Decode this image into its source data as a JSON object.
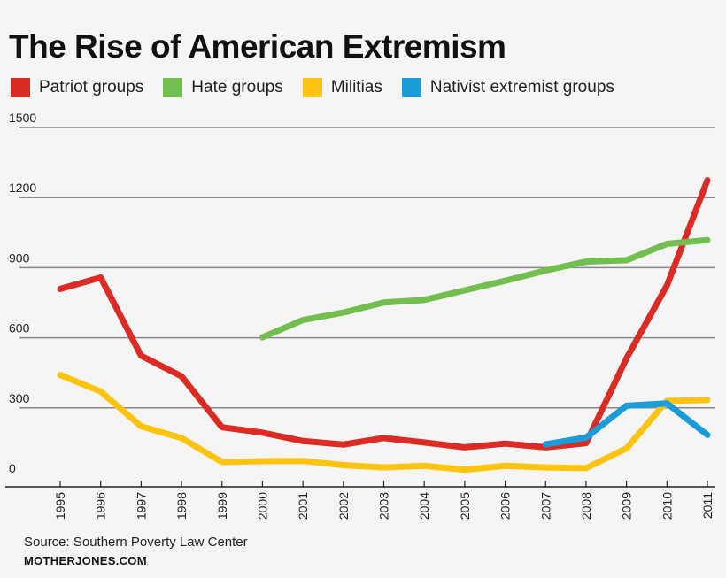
{
  "chart_data": {
    "type": "line",
    "title": "The Rise of American Extremism",
    "x": [
      1995,
      1996,
      1997,
      1998,
      1999,
      2000,
      2001,
      2002,
      2003,
      2004,
      2005,
      2006,
      2007,
      2008,
      2009,
      2010,
      2011
    ],
    "yticks": [
      0,
      300,
      600,
      900,
      1200,
      1500
    ],
    "ylim": [
      0,
      1500
    ],
    "grid": true,
    "legend": "top",
    "series": [
      {
        "name": "Patriot groups",
        "color": "#dc2a24",
        "values": [
          809,
          858,
          523,
          435,
          217,
          194,
          158,
          143,
          171,
          152,
          131,
          147,
          131,
          149,
          512,
          824,
          1274
        ]
      },
      {
        "name": "Hate groups",
        "color": "#72bf4f",
        "values": [
          null,
          null,
          null,
          null,
          null,
          602,
          676,
          708,
          751,
          762,
          803,
          844,
          888,
          926,
          932,
          1002,
          1018
        ]
      },
      {
        "name": "Militias",
        "color": "#fcc40f",
        "values": [
          441,
          370,
          221,
          171,
          68,
          72,
          73,
          55,
          45,
          52,
          35,
          52,
          45,
          42,
          127,
          330,
          334
        ]
      },
      {
        "name": "Nativist extremist groups",
        "color": "#1a9cd8",
        "values": [
          null,
          null,
          null,
          null,
          null,
          null,
          null,
          null,
          null,
          null,
          null,
          null,
          144,
          173,
          309,
          319,
          184
        ]
      }
    ]
  },
  "footer": {
    "source": "Source: Southern Poverty Law Center",
    "brand": "MOTHERJONES.COM"
  }
}
